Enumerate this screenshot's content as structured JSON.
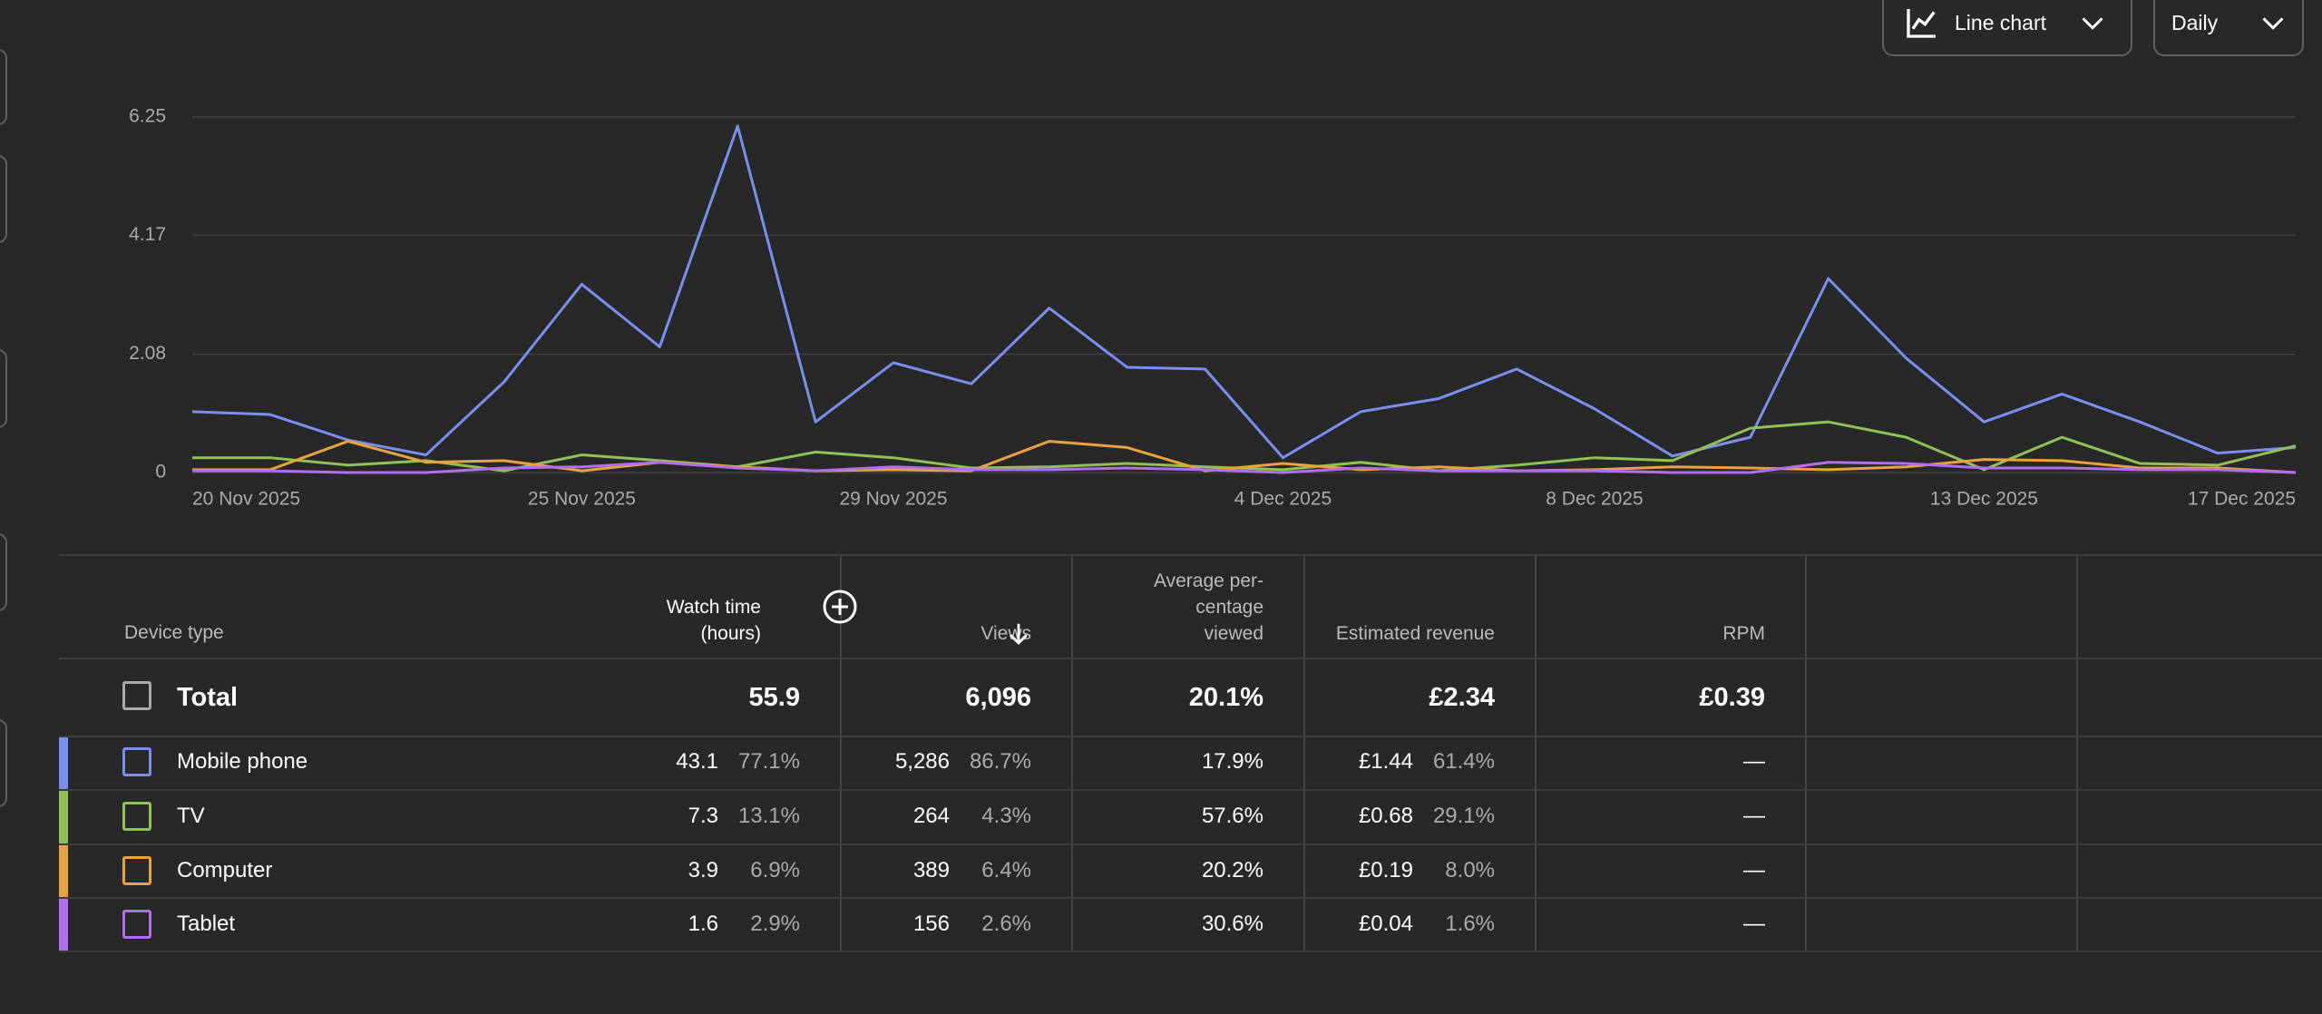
{
  "controls": {
    "chart_type": "Line chart",
    "interval": "Daily"
  },
  "chart_data": {
    "type": "line",
    "x": [
      "20 Nov 2025",
      null,
      null,
      null,
      null,
      "25 Nov 2025",
      null,
      null,
      null,
      "29 Nov 2025",
      null,
      null,
      null,
      null,
      "4 Dec 2025",
      null,
      null,
      null,
      "8 Dec 2025",
      null,
      null,
      null,
      null,
      "13 Dec 2025",
      null,
      null,
      null,
      "17 Dec 2025"
    ],
    "series": [
      {
        "name": "Mobile phone",
        "color": "#7b8ff0",
        "values": [
          1.07,
          1.02,
          0.57,
          0.31,
          1.59,
          3.31,
          2.21,
          6.09,
          0.89,
          1.93,
          1.56,
          2.89,
          1.85,
          1.82,
          0.26,
          1.07,
          1.3,
          1.82,
          1.12,
          0.29,
          0.62,
          3.41,
          2.01,
          0.89,
          1.38,
          0.89,
          0.34,
          0.44
        ]
      },
      {
        "name": "TV",
        "color": "#8fc155",
        "values": [
          0.26,
          0.26,
          0.13,
          0.21,
          0.03,
          0.31,
          0.21,
          0.1,
          0.36,
          0.26,
          0.08,
          0.1,
          0.16,
          0.1,
          0.05,
          0.18,
          0.03,
          0.13,
          0.26,
          0.21,
          0.78,
          0.89,
          0.62,
          0.05,
          0.62,
          0.16,
          0.13,
          0.47
        ]
      },
      {
        "name": "Computer",
        "color": "#e8a33d",
        "values": [
          0.05,
          0.05,
          0.55,
          0.18,
          0.21,
          0.03,
          0.18,
          0.1,
          0.03,
          0.05,
          0.03,
          0.55,
          0.44,
          0.03,
          0.16,
          0.05,
          0.1,
          0.03,
          0.05,
          0.1,
          0.08,
          0.05,
          0.1,
          0.23,
          0.21,
          0.08,
          0.08,
          0
        ]
      },
      {
        "name": "Tablet",
        "color": "#b36ef0",
        "values": [
          0.03,
          0.03,
          0,
          0,
          0.08,
          0.1,
          0.18,
          0.08,
          0.03,
          0.1,
          0.05,
          0.05,
          0.08,
          0.05,
          0,
          0.08,
          0.03,
          0.03,
          0.03,
          0,
          0,
          0.18,
          0.16,
          0.08,
          0.08,
          0.05,
          0.05,
          0
        ]
      }
    ],
    "ylim": [
      0,
      6.25
    ],
    "yticks": [
      0,
      2.08,
      4.17,
      6.25
    ],
    "grid": true
  },
  "table": {
    "columns": [
      "Device type",
      "Watch time (hours)",
      "Views",
      "Average per-centage viewed",
      "Estimated revenue",
      "RPM"
    ],
    "total": {
      "label": "Total",
      "cells": [
        "55.9",
        "6,096",
        "20.1%",
        "£2.34",
        "£0.39"
      ]
    },
    "rows": [
      {
        "cells": [
          [
            "43.1",
            "77.1%"
          ],
          [
            "5,286",
            "86.7%"
          ],
          [
            "17.9%"
          ],
          [
            "£1.44",
            "61.4%"
          ],
          [
            "—"
          ]
        ]
      },
      {
        "cells": [
          [
            "7.3",
            "13.1%"
          ],
          [
            "264",
            "4.3%"
          ],
          [
            "57.6%"
          ],
          [
            "£0.68",
            "29.1%"
          ],
          [
            "—"
          ]
        ]
      },
      {
        "cells": [
          [
            "3.9",
            "6.9%"
          ],
          [
            "389",
            "6.4%"
          ],
          [
            "20.2%"
          ],
          [
            "£0.19",
            "8.0%"
          ],
          [
            "—"
          ]
        ]
      },
      {
        "cells": [
          [
            "1.6",
            "2.9%"
          ],
          [
            "156",
            "2.6%"
          ],
          [
            "30.6%"
          ],
          [
            "£0.04",
            "1.6%"
          ],
          [
            "—"
          ]
        ]
      }
    ]
  }
}
